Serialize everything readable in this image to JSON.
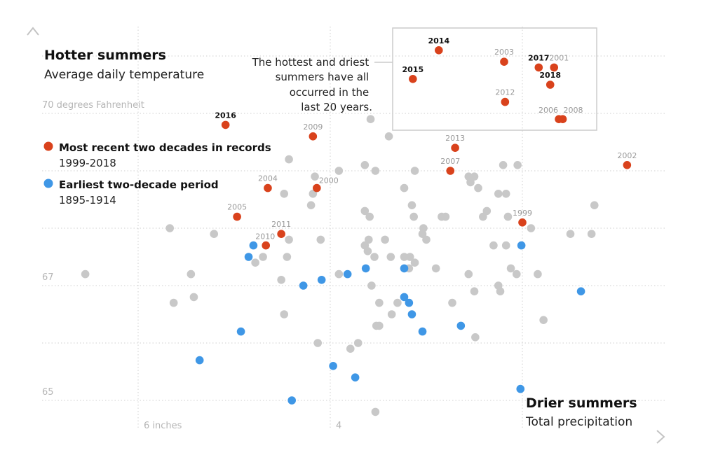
{
  "chart_data": {
    "type": "scatter",
    "y_title": "Hotter summers",
    "y_subtitle": "Average daily temperature",
    "x_title": "Drier summers",
    "x_subtitle": "Total precipitation",
    "xlim": [
      6.9,
      0.4
    ],
    "x_reversed": true,
    "ylim": [
      64.7,
      71.3
    ],
    "grid": true,
    "x_gridlines": [
      6,
      4,
      2
    ],
    "y_gridlines": [
      65,
      66,
      67,
      68,
      69,
      70,
      71
    ],
    "x_ticks": [
      {
        "value": 6,
        "label": "6 inches"
      },
      {
        "value": 4,
        "label": "4"
      }
    ],
    "y_ticks": [
      {
        "value": 70,
        "label": "70 degrees Fahrenheit"
      },
      {
        "value": 67,
        "label": "67"
      },
      {
        "value": 65,
        "label": "65"
      }
    ],
    "legend": {
      "placement": "left",
      "items": [
        {
          "label": "Most recent two decades in records",
          "sublabel": "1999-2018",
          "color": "#d9421c"
        },
        {
          "label": "Earliest two-decade period",
          "sublabel": "1895-1914",
          "color": "#3f97e6"
        }
      ]
    },
    "annotation": {
      "lines": [
        "The hottest and driest",
        "summers have all",
        "occurred in the",
        "last 20 years."
      ]
    },
    "series": [
      {
        "name": "",
        "color": "#c8c8c8",
        "points": [
          [
            3.58,
            69.9
          ],
          [
            3.39,
            69.6
          ],
          [
            4.43,
            69.2
          ],
          [
            3.64,
            69.1
          ],
          [
            3.91,
            69.0
          ],
          [
            3.53,
            69.0
          ],
          [
            3.12,
            69.0
          ],
          [
            2.2,
            69.1
          ],
          [
            2.05,
            69.1
          ],
          [
            4.16,
            68.9
          ],
          [
            2.56,
            68.9
          ],
          [
            2.5,
            68.9
          ],
          [
            2.54,
            68.8
          ],
          [
            3.23,
            68.7
          ],
          [
            2.46,
            68.7
          ],
          [
            4.48,
            68.6
          ],
          [
            4.18,
            68.6
          ],
          [
            2.25,
            68.6
          ],
          [
            2.17,
            68.6
          ],
          [
            4.2,
            68.4
          ],
          [
            3.15,
            68.4
          ],
          [
            1.25,
            68.4
          ],
          [
            3.64,
            68.3
          ],
          [
            2.37,
            68.3
          ],
          [
            3.59,
            68.2
          ],
          [
            3.13,
            68.2
          ],
          [
            2.84,
            68.2
          ],
          [
            2.8,
            68.2
          ],
          [
            2.41,
            68.2
          ],
          [
            2.15,
            68.2
          ],
          [
            5.67,
            68.0
          ],
          [
            3.03,
            68.0
          ],
          [
            1.91,
            68.0
          ],
          [
            5.21,
            67.9
          ],
          [
            3.04,
            67.9
          ],
          [
            1.5,
            67.9
          ],
          [
            1.28,
            67.9
          ],
          [
            4.43,
            67.8
          ],
          [
            4.1,
            67.8
          ],
          [
            3.6,
            67.8
          ],
          [
            3.43,
            67.8
          ],
          [
            3.0,
            67.8
          ],
          [
            3.64,
            67.7
          ],
          [
            2.3,
            67.7
          ],
          [
            2.17,
            67.7
          ],
          [
            3.61,
            67.6
          ],
          [
            4.7,
            67.5
          ],
          [
            4.45,
            67.5
          ],
          [
            3.54,
            67.5
          ],
          [
            3.37,
            67.5
          ],
          [
            3.23,
            67.5
          ],
          [
            3.17,
            67.5
          ],
          [
            4.78,
            67.4
          ],
          [
            3.12,
            67.4
          ],
          [
            3.18,
            67.3
          ],
          [
            2.9,
            67.3
          ],
          [
            2.12,
            67.3
          ],
          [
            6.55,
            67.2
          ],
          [
            5.45,
            67.2
          ],
          [
            3.91,
            67.2
          ],
          [
            2.56,
            67.2
          ],
          [
            2.06,
            67.2
          ],
          [
            1.84,
            67.2
          ],
          [
            4.51,
            67.1
          ],
          [
            3.57,
            67.0
          ],
          [
            2.25,
            67.0
          ],
          [
            2.5,
            66.9
          ],
          [
            2.23,
            66.9
          ],
          [
            5.42,
            66.8
          ],
          [
            5.63,
            66.7
          ],
          [
            3.49,
            66.7
          ],
          [
            3.3,
            66.7
          ],
          [
            2.73,
            66.7
          ],
          [
            4.48,
            66.5
          ],
          [
            3.36,
            66.5
          ],
          [
            1.78,
            66.4
          ],
          [
            3.52,
            66.3
          ],
          [
            3.49,
            66.3
          ],
          [
            2.49,
            66.1
          ],
          [
            4.13,
            66.0
          ],
          [
            3.71,
            66.0
          ],
          [
            3.79,
            65.9
          ],
          [
            3.53,
            64.8
          ]
        ]
      },
      {
        "name": "Earliest two-decade period",
        "color": "#3f97e6",
        "points": [
          [
            4.8,
            67.7
          ],
          [
            4.85,
            67.5
          ],
          [
            2.01,
            67.7
          ],
          [
            3.63,
            67.3
          ],
          [
            3.23,
            67.3
          ],
          [
            3.82,
            67.2
          ],
          [
            4.09,
            67.1
          ],
          [
            4.28,
            67.0
          ],
          [
            1.39,
            66.9
          ],
          [
            3.23,
            66.8
          ],
          [
            3.18,
            66.7
          ],
          [
            3.15,
            66.5
          ],
          [
            2.64,
            66.3
          ],
          [
            3.04,
            66.2
          ],
          [
            4.93,
            66.2
          ],
          [
            5.36,
            65.7
          ],
          [
            3.97,
            65.6
          ],
          [
            3.74,
            65.4
          ],
          [
            2.02,
            65.2
          ],
          [
            4.4,
            65.0
          ]
        ]
      },
      {
        "name": "Most recent two decades in records",
        "color": "#d9421c",
        "points": [
          {
            "year": "2014",
            "x": 2.87,
            "y": 71.1,
            "highlight": true
          },
          {
            "year": "2015",
            "x": 3.14,
            "y": 70.6,
            "highlight": true
          },
          {
            "year": "2003",
            "x": 2.19,
            "y": 70.9
          },
          {
            "year": "2017",
            "x": 1.83,
            "y": 70.8,
            "highlight": true
          },
          {
            "year": "2001",
            "x": 1.67,
            "y": 70.8
          },
          {
            "year": "2018",
            "x": 1.71,
            "y": 70.5,
            "highlight": true
          },
          {
            "year": "2012",
            "x": 2.18,
            "y": 70.2
          },
          {
            "year": "2006",
            "x": 1.62,
            "y": 69.9
          },
          {
            "year": "2008",
            "x": 1.58,
            "y": 69.9
          },
          {
            "year": "2016",
            "x": 5.09,
            "y": 69.8,
            "highlight": true
          },
          {
            "year": "2009",
            "x": 4.18,
            "y": 69.6
          },
          {
            "year": "2013",
            "x": 2.7,
            "y": 69.4
          },
          {
            "year": "2002",
            "x": 0.91,
            "y": 69.1
          },
          {
            "year": "2007",
            "x": 2.75,
            "y": 69.0
          },
          {
            "year": "2004",
            "x": 4.65,
            "y": 68.7
          },
          {
            "year": "2000",
            "x": 4.14,
            "y": 68.7
          },
          {
            "year": "2005",
            "x": 4.97,
            "y": 68.2
          },
          {
            "year": "1999",
            "x": 2.0,
            "y": 68.1
          },
          {
            "year": "2011",
            "x": 4.51,
            "y": 67.9
          },
          {
            "year": "2010",
            "x": 4.67,
            "y": 67.7
          }
        ]
      }
    ]
  }
}
